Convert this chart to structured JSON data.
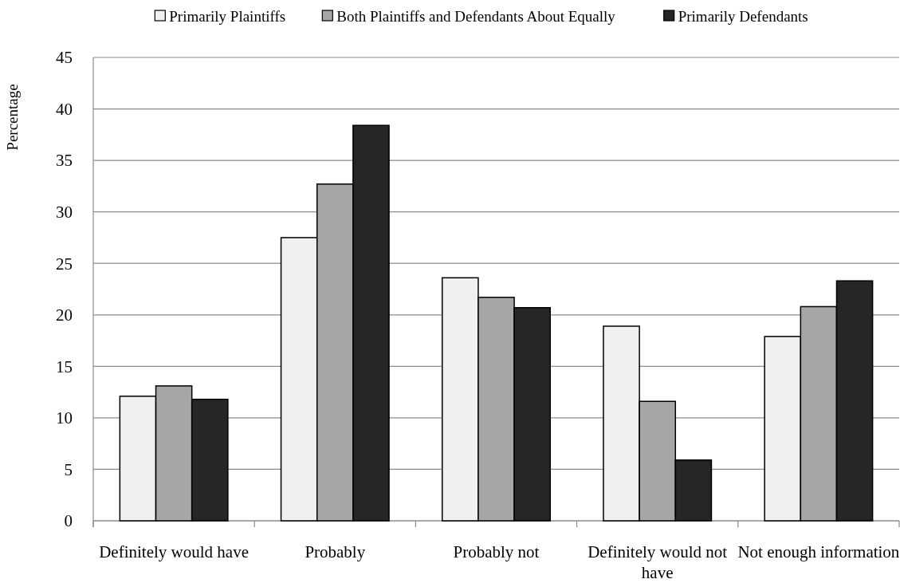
{
  "chart_data": {
    "type": "bar",
    "ylabel": "Percentage",
    "categories": [
      "Definitely would have",
      "Probably",
      "Probably not",
      "Definitely would not have",
      "Not enough information"
    ],
    "series": [
      {
        "name": "Primarily Plaintiffs",
        "color": "#f0f0f0",
        "values": [
          12.1,
          27.5,
          23.6,
          18.9,
          17.9
        ]
      },
      {
        "name": "Both Plaintiffs and Defendants About Equally",
        "color": "#a6a6a6",
        "values": [
          13.1,
          32.7,
          21.7,
          11.6,
          20.8
        ]
      },
      {
        "name": "Primarily Defendants",
        "color": "#262626",
        "values": [
          11.8,
          38.4,
          20.7,
          5.9,
          23.3
        ]
      }
    ],
    "ylim": [
      0,
      45
    ],
    "yticks": [
      0,
      5,
      10,
      15,
      20,
      25,
      30,
      35,
      40,
      45
    ],
    "grid": "y",
    "legend": "top"
  }
}
